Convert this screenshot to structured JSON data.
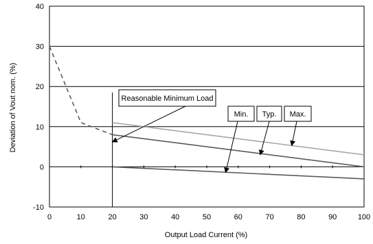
{
  "chart_data": {
    "type": "line",
    "title": "",
    "xlabel": "Output Load Current (%)",
    "ylabel": "Deviation of Vout nom. (%)",
    "xlim": [
      0,
      100
    ],
    "ylim": [
      -10,
      40
    ],
    "xticks": [
      0,
      10,
      20,
      30,
      40,
      50,
      60,
      70,
      80,
      90,
      100
    ],
    "yticks": [
      -10,
      0,
      10,
      20,
      30,
      40
    ],
    "grid": "horizontal",
    "colors": {
      "dashed": "#595959",
      "max": "#a6a6a6",
      "typ": "#595959",
      "min": "#595959",
      "grid": "#000000"
    },
    "series": [
      {
        "style": "dashed",
        "x": [
          0,
          10,
          20
        ],
        "y": [
          30,
          11,
          8
        ]
      },
      {
        "name": "Max.",
        "x": [
          20,
          100
        ],
        "y": [
          11,
          3
        ]
      },
      {
        "name": "Typ.",
        "x": [
          20,
          100
        ],
        "y": [
          8,
          0
        ]
      },
      {
        "name": "Min.",
        "x": [
          20,
          100
        ],
        "y": [
          0,
          -3
        ]
      }
    ],
    "reference_line": {
      "x": 20,
      "y_from": -10,
      "y_to": 18.5
    },
    "annotations": [
      {
        "text": "Reasonable Minimum Load",
        "target": [
          20,
          6.2
        ]
      },
      {
        "text": "Min.",
        "target": [
          56,
          -1.4
        ]
      },
      {
        "text": "Typ.",
        "target": [
          67,
          3.0
        ]
      },
      {
        "text": "Max.",
        "target": [
          77,
          5.3
        ]
      }
    ]
  }
}
